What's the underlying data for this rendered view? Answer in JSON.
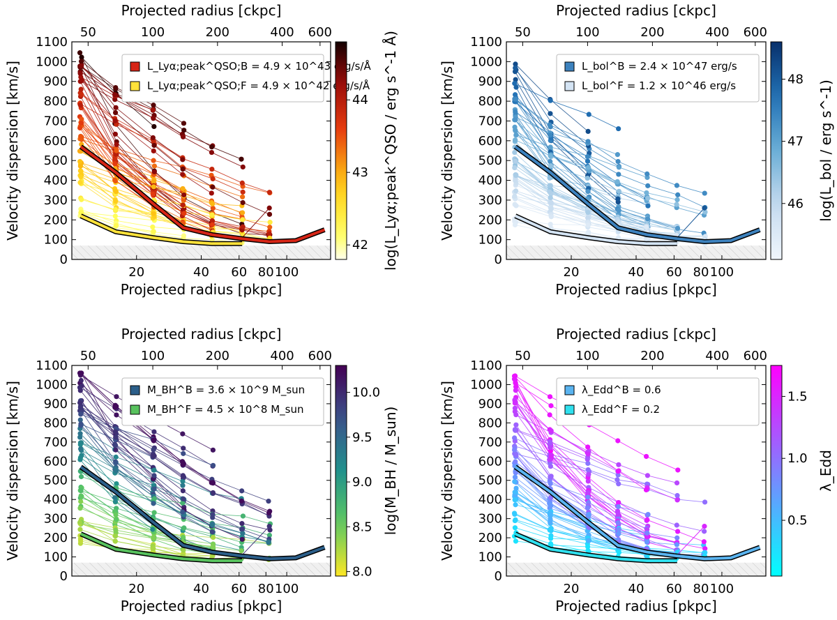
{
  "chart_data": [
    {
      "type": "line",
      "panel": "top-left",
      "bottom_xlabel": "Projected radius [pkpc]",
      "top_xlabel": "Projected radius [ckpc]",
      "ylabel": "Velocity dispersion [km/s]",
      "ylim": [
        0,
        1100
      ],
      "xlim_pkpc": [
        10,
        160
      ],
      "bottom_ticks": [
        "20",
        "40",
        "60",
        "80",
        "100"
      ],
      "top_ticks": [
        "50",
        "100",
        "200",
        "400",
        "600"
      ],
      "y_ticks": [
        "0",
        "100",
        "200",
        "300",
        "400",
        "500",
        "600",
        "700",
        "800",
        "900",
        "1000",
        "1100"
      ],
      "legend": [
        {
          "label": "L_Lyα;peak^QSO;B = 4.9 × 10^43 erg/s/Å",
          "color": "#d62516"
        },
        {
          "label": "L_Lyα;peak^QSO;F = 4.9 × 10^42 erg/s/Å",
          "color": "#ffe23a"
        }
      ],
      "colorbar": {
        "label": "log(L_Lyα;peak^QSO / erg s^-1 Å)",
        "range": [
          41.8,
          44.8
        ],
        "ticks": [
          "42",
          "43",
          "44"
        ],
        "colormap": "hot_r"
      },
      "series": [
        {
          "name": "bright median",
          "x_pkpc": [
            11,
            16,
            24,
            33,
            45,
            62,
            83,
            110,
            150
          ],
          "y": [
            570,
            440,
            280,
            160,
            125,
            105,
            90,
            95,
            150
          ]
        },
        {
          "name": "faint median",
          "x_pkpc": [
            11,
            16,
            24,
            33,
            45,
            62
          ],
          "y": [
            220,
            140,
            110,
            90,
            80,
            80
          ]
        }
      ],
      "shaded_floor": 70
    },
    {
      "type": "line",
      "panel": "top-right",
      "bottom_xlabel": "Projected radius [pkpc]",
      "top_xlabel": "Projected radius [ckpc]",
      "ylabel": "Velocity dispersion [km/s]",
      "ylim": [
        0,
        1100
      ],
      "xlim_pkpc": [
        10,
        160
      ],
      "bottom_ticks": [
        "20",
        "40",
        "60",
        "80",
        "100"
      ],
      "top_ticks": [
        "50",
        "100",
        "200",
        "400",
        "600"
      ],
      "y_ticks": [
        "0",
        "100",
        "200",
        "300",
        "400",
        "500",
        "600",
        "700",
        "800",
        "900",
        "1000",
        "1100"
      ],
      "legend": [
        {
          "label": "L_bol^B = 2.4 × 10^47 erg/s",
          "color": "#3d82be"
        },
        {
          "label": "L_bol^F = 1.2 × 10^46 erg/s",
          "color": "#d4e4f4"
        }
      ],
      "colorbar": {
        "label": "log(L_bol / erg s^-1)",
        "range": [
          45.1,
          48.6
        ],
        "ticks": [
          "46",
          "47",
          "48"
        ],
        "colormap": "Blues"
      },
      "series": [
        {
          "name": "bright median",
          "x_pkpc": [
            11,
            16,
            24,
            33,
            45,
            62,
            83,
            110,
            150
          ],
          "y": [
            570,
            440,
            280,
            160,
            125,
            105,
            90,
            95,
            150
          ]
        },
        {
          "name": "faint median",
          "x_pkpc": [
            11,
            16,
            24,
            33,
            45,
            62
          ],
          "y": [
            220,
            140,
            110,
            90,
            80,
            80
          ]
        }
      ],
      "shaded_floor": 70
    },
    {
      "type": "line",
      "panel": "bottom-left",
      "bottom_xlabel": "Projected radius [pkpc]",
      "top_xlabel": "Projected radius [ckpc]",
      "ylabel": "Velocity dispersion [km/s]",
      "ylim": [
        0,
        1100
      ],
      "xlim_pkpc": [
        10,
        160
      ],
      "bottom_ticks": [
        "20",
        "40",
        "60",
        "80",
        "100"
      ],
      "top_ticks": [
        "50",
        "100",
        "200",
        "400",
        "600"
      ],
      "y_ticks": [
        "0",
        "100",
        "200",
        "300",
        "400",
        "500",
        "600",
        "700",
        "800",
        "900",
        "1000",
        "1100"
      ],
      "legend": [
        {
          "label": "M_BH^B = 3.6 × 10^9 M_sun",
          "color": "#2c5f8a"
        },
        {
          "label": "M_BH^F = 4.5 × 10^8 M_sun",
          "color": "#58c25e"
        }
      ],
      "colorbar": {
        "label": "log(M_BH / M_sun)",
        "range": [
          7.95,
          10.3
        ],
        "ticks": [
          "8.0",
          "8.5",
          "9.0",
          "9.5",
          "10.0"
        ],
        "colormap": "viridis_r"
      },
      "series": [
        {
          "name": "bright median",
          "x_pkpc": [
            11,
            16,
            24,
            33,
            45,
            62,
            83,
            110,
            150
          ],
          "y": [
            570,
            440,
            280,
            160,
            125,
            105,
            90,
            95,
            150
          ]
        },
        {
          "name": "faint median",
          "x_pkpc": [
            11,
            16,
            24,
            33,
            45,
            62
          ],
          "y": [
            220,
            140,
            110,
            90,
            80,
            80
          ]
        }
      ],
      "shaded_floor": 70
    },
    {
      "type": "line",
      "panel": "bottom-right",
      "bottom_xlabel": "Projected radius [pkpc]",
      "top_xlabel": "Projected radius [ckpc]",
      "ylabel": "Velocity dispersion [km/s]",
      "ylim": [
        0,
        1100
      ],
      "xlim_pkpc": [
        10,
        160
      ],
      "bottom_ticks": [
        "20",
        "40",
        "60",
        "80",
        "100"
      ],
      "top_ticks": [
        "50",
        "100",
        "200",
        "400",
        "600"
      ],
      "y_ticks": [
        "0",
        "100",
        "200",
        "300",
        "400",
        "500",
        "600",
        "700",
        "800",
        "900",
        "1000",
        "1100"
      ],
      "legend": [
        {
          "label": "λ_Edd^B = 0.6",
          "color": "#5ab4f0"
        },
        {
          "label": "λ_Edd^F = 0.2",
          "color": "#30e0ee"
        }
      ],
      "colorbar": {
        "label": "λ_Edd",
        "range": [
          0.05,
          1.75
        ],
        "ticks": [
          "0.5",
          "1.0",
          "1.5"
        ],
        "colormap": "cool"
      },
      "series": [
        {
          "name": "bright median",
          "x_pkpc": [
            11,
            16,
            24,
            33,
            45,
            62,
            83,
            110,
            150
          ],
          "y": [
            570,
            440,
            280,
            160,
            125,
            105,
            90,
            95,
            150
          ]
        },
        {
          "name": "faint median",
          "x_pkpc": [
            11,
            16,
            24,
            33,
            45,
            62
          ],
          "y": [
            220,
            140,
            110,
            90,
            80,
            80
          ]
        }
      ],
      "shaded_floor": 70
    }
  ]
}
